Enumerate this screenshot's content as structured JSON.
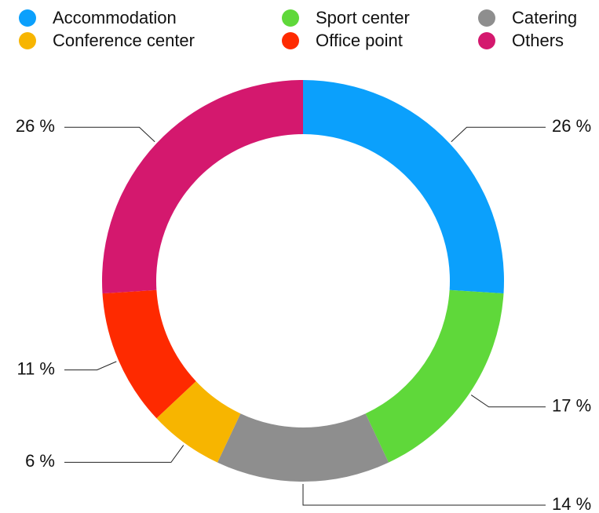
{
  "chart_data": {
    "type": "donut",
    "categories": [
      "Accommodation",
      "Sport center",
      "Catering",
      "Conference center",
      "Office point",
      "Others"
    ],
    "values": [
      26,
      17,
      14,
      6,
      11,
      26
    ],
    "value_labels": [
      "26 %",
      "17 %",
      "14 %",
      "6 %",
      "11 %",
      "26 %"
    ],
    "colors": [
      "#0ba0fc",
      "#5fd83a",
      "#8e8e8e",
      "#f7b500",
      "#fe2a00",
      "#d4186e"
    ],
    "legend": "top"
  }
}
